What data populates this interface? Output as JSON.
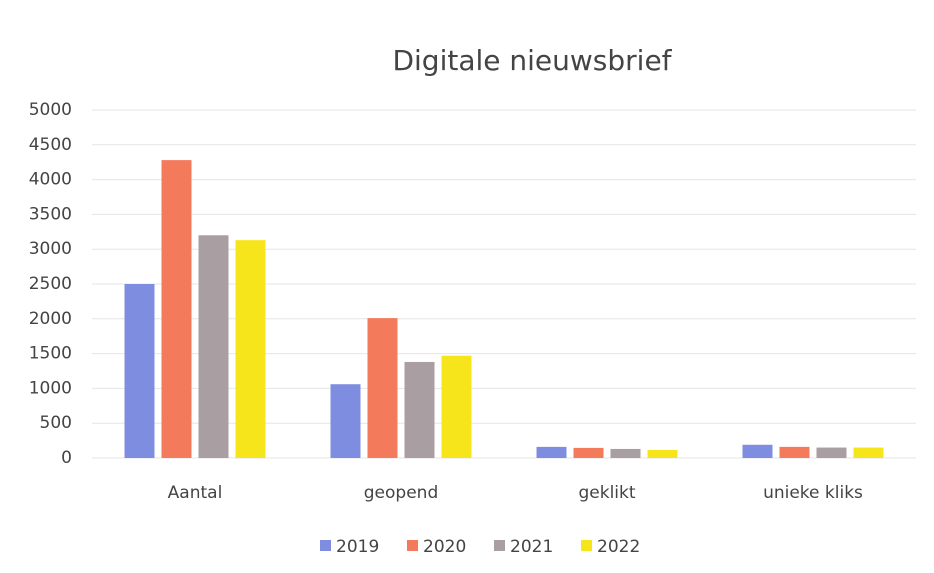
{
  "chart_data": {
    "type": "bar",
    "title": "Digitale nieuwsbrief",
    "categories": [
      "Aantal",
      "geopend",
      "geklikt",
      "unieke kliks"
    ],
    "series": [
      {
        "name": "2019",
        "color": "#7f8de0",
        "values": [
          2500,
          1060,
          160,
          190
        ]
      },
      {
        "name": "2020",
        "color": "#f47a5c",
        "values": [
          4280,
          2010,
          145,
          160
        ]
      },
      {
        "name": "2021",
        "color": "#a99ea2",
        "values": [
          3200,
          1380,
          130,
          150
        ]
      },
      {
        "name": "2022",
        "color": "#f6e51a",
        "values": [
          3130,
          1470,
          115,
          150
        ]
      }
    ],
    "ylim": [
      0,
      5000
    ],
    "yticks": [
      0,
      500,
      1000,
      1500,
      2000,
      2500,
      3000,
      3500,
      4000,
      4500,
      5000
    ],
    "grid": true,
    "legend": "bottom"
  }
}
